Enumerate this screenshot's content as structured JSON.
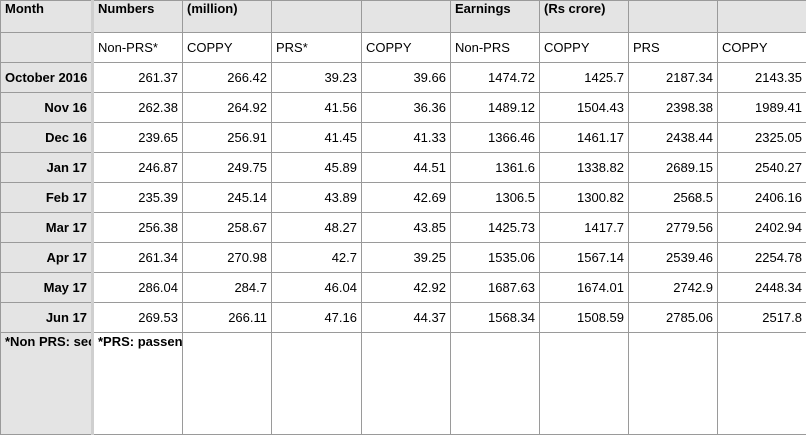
{
  "header": {
    "month": "Month",
    "numbers": "Numbers",
    "million": "(million)",
    "earnings": "Earnings",
    "rs_crore": "(Rs crore)"
  },
  "subheaders": [
    "Non-PRS*",
    "COPPY",
    "PRS*",
    "COPPY",
    "Non-PRS",
    "COPPY",
    "PRS",
    "COPPY"
  ],
  "rows": [
    {
      "month": "October 2016",
      "values": [
        "261.37",
        "266.42",
        "39.23",
        "39.66",
        "1474.72",
        "1425.7",
        "2187.34",
        "2143.35"
      ]
    },
    {
      "month": "Nov 16",
      "values": [
        "262.38",
        "264.92",
        "41.56",
        "36.36",
        "1489.12",
        "1504.43",
        "2398.38",
        "1989.41"
      ]
    },
    {
      "month": "Dec 16",
      "values": [
        "239.65",
        "256.91",
        "41.45",
        "41.33",
        "1366.46",
        "1461.17",
        "2438.44",
        "2325.05"
      ]
    },
    {
      "month": "Jan 17",
      "values": [
        "246.87",
        "249.75",
        "45.89",
        "44.51",
        "1361.6",
        "1338.82",
        "2689.15",
        "2540.27"
      ]
    },
    {
      "month": "Feb 17",
      "values": [
        "235.39",
        "245.14",
        "43.89",
        "42.69",
        "1306.5",
        "1300.82",
        "2568.5",
        "2406.16"
      ]
    },
    {
      "month": "Mar 17",
      "values": [
        "256.38",
        "258.67",
        "48.27",
        "43.85",
        "1425.73",
        "1417.7",
        "2779.56",
        "2402.94"
      ]
    },
    {
      "month": "Apr 17",
      "values": [
        "261.34",
        "270.98",
        "42.7",
        "39.25",
        "1535.06",
        "1567.14",
        "2539.46",
        "2254.78"
      ]
    },
    {
      "month": "May 17",
      "values": [
        "286.04",
        "284.7",
        "46.04",
        "42.92",
        "1687.63",
        "1674.01",
        "2742.9",
        "2448.34"
      ]
    },
    {
      "month": "Jun 17",
      "values": [
        "269.53",
        "266.11",
        "47.16",
        "44.37",
        "1568.34",
        "1508.59",
        "2785.06",
        "2517.8"
      ]
    }
  ],
  "notes": {
    "non_prs": "*Non PRS: second class and unreserved train ticket",
    "prs": "*PRS: passengers with reservations"
  }
}
